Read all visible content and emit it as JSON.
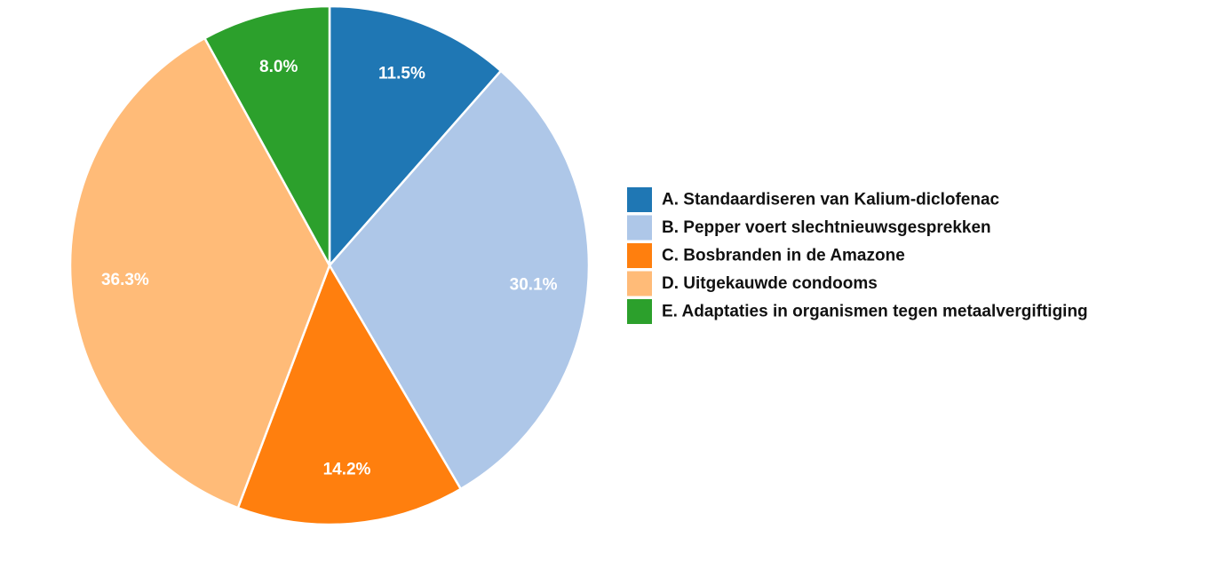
{
  "chart_data": {
    "type": "pie",
    "categories": [
      "A. Standaardiseren van Kalium-diclofenac",
      "B. Pepper voert slechtnieuwsgesprekken",
      "C. Bosbranden in de Amazone",
      "D. Uitgekauwde condooms",
      "E. Adaptaties in organismen tegen metaalvergiftiging"
    ],
    "values": [
      11.5,
      30.1,
      14.2,
      36.3,
      8.0
    ],
    "data_labels": [
      "11.5%",
      "30.1%",
      "14.2%",
      "36.3%",
      "8.0%"
    ],
    "colors": [
      "#1f77b4",
      "#aec7e8",
      "#ff7f0e",
      "#ffbb78",
      "#2ca02c"
    ],
    "start_angle": "12 o'clock",
    "direction": "clockwise",
    "legend_position": "right"
  }
}
